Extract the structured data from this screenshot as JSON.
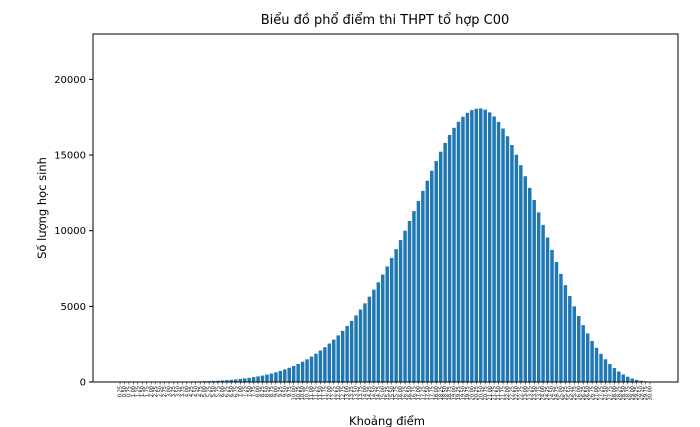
{
  "chart_data": {
    "type": "bar",
    "title": "Biểu đồ phổ điểm thi THPT tổ hợp C00",
    "xlabel": "Khoảng điểm",
    "ylabel": "Số lượng học sinh",
    "ylim": [
      0,
      23000
    ],
    "yticks": [
      0,
      5000,
      10000,
      15000,
      20000
    ],
    "grid": false,
    "color": "#1f77b4",
    "categories": [
      "0.25",
      "0.50",
      "0.75",
      "1.00",
      "1.25",
      "1.50",
      "1.75",
      "2.00",
      "2.25",
      "2.50",
      "2.75",
      "3.00",
      "3.25",
      "3.50",
      "3.75",
      "4.00",
      "4.25",
      "4.50",
      "4.75",
      "5.00",
      "5.25",
      "5.50",
      "5.75",
      "6.00",
      "6.25",
      "6.50",
      "6.75",
      "7.00",
      "7.25",
      "7.50",
      "7.75",
      "8.00",
      "8.25",
      "8.50",
      "8.75",
      "9.00",
      "9.25",
      "9.50",
      "9.75",
      "10.00",
      "10.25",
      "10.50",
      "10.75",
      "11.00",
      "11.25",
      "11.50",
      "11.75",
      "12.00",
      "12.25",
      "12.50",
      "12.75",
      "13.00",
      "13.25",
      "13.50",
      "13.75",
      "14.00",
      "14.25",
      "14.50",
      "14.75",
      "15.00",
      "15.25",
      "15.50",
      "15.75",
      "16.00",
      "16.25",
      "16.50",
      "16.75",
      "17.00",
      "17.25",
      "17.50",
      "17.75",
      "18.00",
      "18.25",
      "18.50",
      "18.75",
      "19.00",
      "19.25",
      "19.50",
      "19.75",
      "20.00",
      "20.25",
      "20.50",
      "20.75",
      "21.00",
      "21.25",
      "21.50",
      "21.75",
      "22.00",
      "22.25",
      "22.50",
      "22.75",
      "23.00",
      "23.25",
      "23.50",
      "23.75",
      "24.00",
      "24.25",
      "24.50",
      "24.75",
      "25.00",
      "25.25",
      "25.50",
      "25.75",
      "26.00",
      "26.25",
      "26.50",
      "26.75",
      "27.00",
      "27.25",
      "27.50",
      "27.75",
      "28.00",
      "28.25",
      "28.50",
      "28.75",
      "29.00",
      "29.25",
      "29.50",
      "29.75",
      "30.00"
    ],
    "values": [
      2,
      2,
      3,
      3,
      4,
      5,
      6,
      7,
      8,
      10,
      12,
      14,
      16,
      19,
      22,
      26,
      30,
      35,
      42,
      50,
      58,
      70,
      85,
      100,
      120,
      145,
      170,
      200,
      235,
      275,
      320,
      370,
      425,
      490,
      560,
      640,
      730,
      830,
      940,
      1060,
      1190,
      1340,
      1500,
      1680,
      1870,
      2080,
      2300,
      2540,
      2800,
      3080,
      3380,
      3700,
      4040,
      4400,
      4790,
      5200,
      5640,
      6100,
      6590,
      7100,
      7640,
      8200,
      8780,
      9380,
      10000,
      10640,
      11300,
      11960,
      12630,
      13300,
      13960,
      14600,
      15220,
      15800,
      16330,
      16800,
      17200,
      17530,
      17790,
      17970,
      18060,
      18080,
      18000,
      17820,
      17550,
      17190,
      16750,
      16240,
      15660,
      15020,
      14330,
      13600,
      12830,
      12030,
      11210,
      10380,
      9550,
      8730,
      7930,
      7150,
      6400,
      5680,
      5000,
      4360,
      3760,
      3210,
      2710,
      2260,
      1860,
      1500,
      1190,
      920,
      690,
      500,
      350,
      230,
      140,
      80,
      40,
      20
    ]
  }
}
